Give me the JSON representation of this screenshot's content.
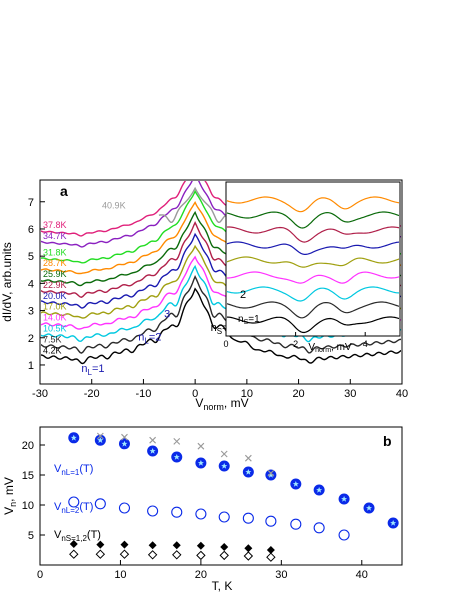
{
  "chart_data": [
    {
      "type": "line",
      "panel_label": "a",
      "xlabel": "V",
      "xlabel_sub": "norm",
      "xlabel_unit": ", mV",
      "ylabel": "dI/dV, arb.units",
      "xlim": [
        -30,
        40
      ],
      "ylim": [
        0.3,
        7.8
      ],
      "x_ticks": [
        -30,
        -20,
        -10,
        0,
        10,
        20,
        30,
        40
      ],
      "y_ticks": [
        1,
        2,
        3,
        4,
        5,
        6,
        7
      ],
      "series": [
        {
          "name": "4.2K",
          "color": "#000000",
          "offset": 0.95
        },
        {
          "name": "7.5K",
          "color": "#2a2a2a",
          "offset": 1.35
        },
        {
          "name": "10.5K",
          "color": "#00c8e0",
          "offset": 1.75
        },
        {
          "name": "14.0K",
          "color": "#ff33ff",
          "offset": 2.15
        },
        {
          "name": "17.0K",
          "color": "#a0a010",
          "offset": 2.55
        },
        {
          "name": "20.0K",
          "color": "#1a1ab0",
          "offset": 2.95
        },
        {
          "name": "22.9K",
          "color": "#b0204a",
          "offset": 3.35
        },
        {
          "name": "25.9K",
          "color": "#0a6a0a",
          "offset": 3.75
        },
        {
          "name": "28.7K",
          "color": "#ff8a00",
          "offset": 4.15
        },
        {
          "name": "31.8K",
          "color": "#22dd22",
          "offset": 4.55
        },
        {
          "name": "34.7K",
          "color": "#8a20c0",
          "offset": 5.15
        },
        {
          "name": "37.8K",
          "color": "#e0207a",
          "offset": 5.55
        },
        {
          "name": "40.9K",
          "color": "#9a9a9a",
          "offset": 6.4
        }
      ],
      "annotations": [
        {
          "text": "n",
          "sub": "L",
          "rest": "=1",
          "x": -22,
          "y": 0.75,
          "color": "#1a1ab0"
        },
        {
          "text": "n",
          "sub": "L",
          "rest": "=2",
          "x": -11,
          "y": 1.9,
          "color": "#1a1ab0"
        },
        {
          "text": "3",
          "x": -6,
          "y": 2.75,
          "color": "#1a1ab0"
        },
        {
          "text": "n",
          "sub": "S",
          "rest": "=1",
          "x": 3,
          "y": 2.25,
          "color": "#000000"
        }
      ],
      "inset": {
        "xlabel": "V",
        "xlabel_sub": "norm",
        "xlabel_unit": ", mV",
        "xlim": [
          0,
          5
        ],
        "x_ticks": [
          0,
          2,
          4
        ],
        "labels": [
          {
            "text": "2"
          },
          {
            "text": "n",
            "sub": "S",
            "rest": "=1"
          }
        ],
        "colors": [
          "#000000",
          "#2a2a2a",
          "#00c8e0",
          "#ff33ff",
          "#a0a010",
          "#1a1ab0",
          "#b0204a",
          "#0a6a0a",
          "#ff8a00"
        ]
      }
    },
    {
      "type": "scatter",
      "panel_label": "b",
      "xlabel": "T, K",
      "ylabel": "V",
      "ylabel_sub": "n",
      "ylabel_unit": ", mV",
      "xlim": [
        0,
        45
      ],
      "ylim": [
        0,
        23
      ],
      "x_ticks": [
        0,
        10,
        20,
        30,
        40
      ],
      "y_ticks": [
        5,
        10,
        15,
        20
      ],
      "series": [
        {
          "name": "V",
          "name_sub": "nL=1",
          "name_rest": "(T)",
          "marker": "filled-circle-star",
          "color": "#0a2ae8",
          "x": [
            4.2,
            7.5,
            10.5,
            14.0,
            17.0,
            20.0,
            22.9,
            25.9,
            28.7,
            31.8,
            34.7,
            37.8,
            40.9,
            43.9
          ],
          "y": [
            21.2,
            20.8,
            20.2,
            19.0,
            18.0,
            17.0,
            16.5,
            15.5,
            15.0,
            13.5,
            12.5,
            11.0,
            9.5,
            7.0
          ]
        },
        {
          "name": "",
          "marker": "cross",
          "color": "#999999",
          "x": [
            7.5,
            10.5,
            14.0,
            17.0,
            20.0,
            22.9,
            25.9,
            28.7
          ],
          "y": [
            21.5,
            21.3,
            20.8,
            20.6,
            19.8,
            18.5,
            17.8,
            15.3
          ]
        },
        {
          "name": "V",
          "name_sub": "nL=2",
          "name_rest": "(T)",
          "marker": "open-circle",
          "color": "#0a2ae8",
          "x": [
            4.2,
            7.5,
            10.5,
            14.0,
            17.0,
            20.0,
            22.9,
            25.9,
            28.7,
            31.8,
            34.7,
            37.8
          ],
          "y": [
            10.5,
            10.2,
            9.5,
            9.0,
            8.8,
            8.5,
            8.0,
            7.8,
            7.3,
            6.8,
            6.2,
            5.0
          ]
        },
        {
          "name": "V",
          "name_sub": "nS=1,2",
          "name_rest": "(T)",
          "marker": "filled-diamond",
          "color": "#000000",
          "x": [
            4.2,
            7.5,
            10.5,
            14.0,
            17.0,
            20.0,
            22.9,
            25.9,
            28.7
          ],
          "y": [
            3.5,
            3.4,
            3.4,
            3.3,
            3.3,
            3.2,
            3.0,
            2.8,
            2.5
          ]
        },
        {
          "name": "",
          "marker": "open-diamond",
          "color": "#000000",
          "x": [
            4.2,
            7.5,
            10.5,
            14.0,
            17.0,
            20.0,
            22.9,
            25.9,
            28.7
          ],
          "y": [
            1.8,
            1.8,
            1.8,
            1.7,
            1.7,
            1.6,
            1.6,
            1.5,
            1.3
          ]
        }
      ]
    }
  ]
}
